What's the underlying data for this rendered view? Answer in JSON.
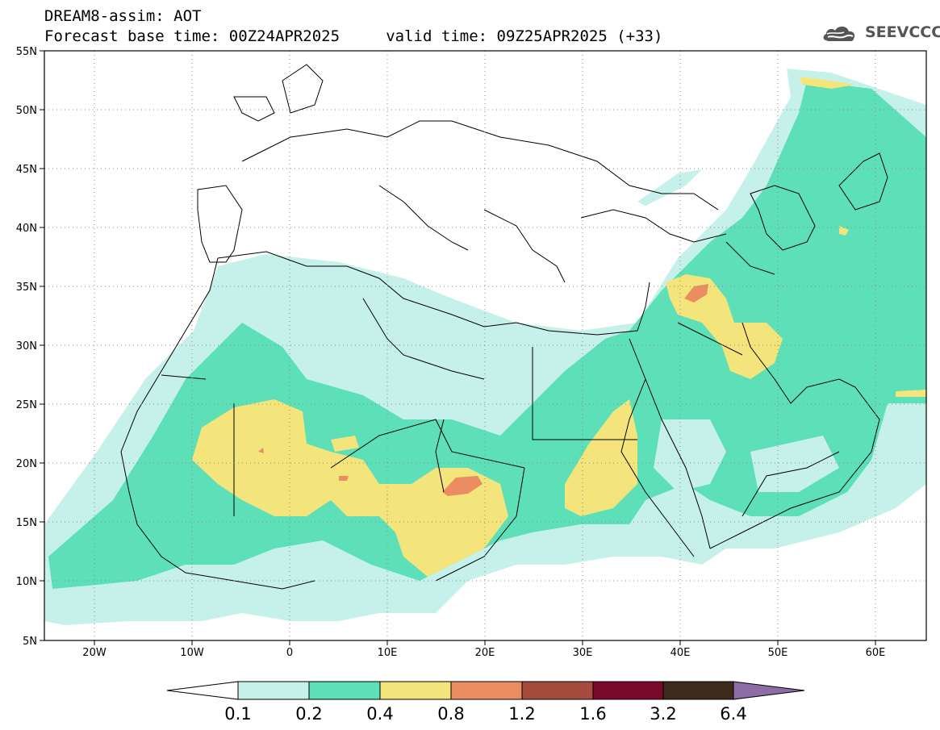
{
  "header": {
    "title": "DREAM8-assim: AOT",
    "subtitle": "Forecast base time: 00Z24APR2025     valid time: 09Z25APR2025 (+33)"
  },
  "logo": {
    "text": "SEEVCCC",
    "icon": "cloud-icon"
  },
  "axes": {
    "lat_labels": [
      "55N",
      "50N",
      "45N",
      "40N",
      "35N",
      "30N",
      "25N",
      "20N",
      "15N",
      "10N",
      "5N"
    ],
    "lon_labels": [
      "20W",
      "10W",
      "0",
      "10E",
      "20E",
      "30E",
      "40E",
      "50E",
      "60E"
    ],
    "lat_range": [
      5,
      55
    ],
    "lon_range": [
      -25,
      65
    ],
    "grid": true
  },
  "colorbar": {
    "levels": [
      "0.1",
      "0.2",
      "0.4",
      "0.8",
      "1.2",
      "1.6",
      "3.2",
      "6.4"
    ],
    "colors": [
      "#ffffff",
      "#c6f1ea",
      "#5ddfb7",
      "#f3e57b",
      "#ea8d60",
      "#a84a3d",
      "#7a0a2b",
      "#3d2a1a",
      "#8e6ca6"
    ]
  },
  "chart_data": {
    "type": "heatmap",
    "variable": "AOT",
    "title": "DREAM8-assim: AOT",
    "base_time": "00Z24APR2025",
    "valid_time": "09Z25APR2025",
    "lead": "+33",
    "xlim": [
      -25,
      65
    ],
    "ylim": [
      5,
      55
    ]
  }
}
